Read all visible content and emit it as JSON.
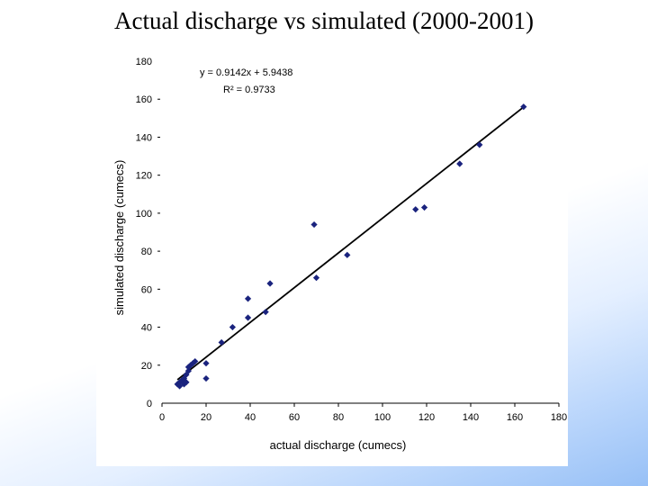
{
  "slide": {
    "title": "Actual discharge vs simulated (2000-2001)"
  },
  "chart_data": {
    "type": "scatter",
    "xlabel": "actual discharge (cumecs)",
    "ylabel": "simulated discharge (cumecs)",
    "xlim": [
      0,
      180
    ],
    "ylim": [
      0,
      180
    ],
    "xticks": [
      0,
      20,
      40,
      60,
      80,
      100,
      120,
      140,
      160,
      180
    ],
    "yticks": [
      0,
      20,
      40,
      60,
      80,
      100,
      120,
      140,
      160,
      180
    ],
    "grid": false,
    "legend": "none",
    "marker_color": "#1a237e",
    "trendline": {
      "type": "linear",
      "slope": 0.9142,
      "intercept": 5.9438,
      "equation": "y = 0.9142x + 5.9438",
      "r_squared": "R² = 0.9733"
    },
    "points": [
      {
        "x": 7,
        "y": 10
      },
      {
        "x": 8,
        "y": 11
      },
      {
        "x": 8,
        "y": 9
      },
      {
        "x": 9,
        "y": 12
      },
      {
        "x": 10,
        "y": 13
      },
      {
        "x": 10,
        "y": 10
      },
      {
        "x": 11,
        "y": 15
      },
      {
        "x": 11,
        "y": 11
      },
      {
        "x": 12,
        "y": 17
      },
      {
        "x": 12,
        "y": 19
      },
      {
        "x": 13,
        "y": 20
      },
      {
        "x": 14,
        "y": 21
      },
      {
        "x": 15,
        "y": 22
      },
      {
        "x": 20,
        "y": 21
      },
      {
        "x": 20,
        "y": 13
      },
      {
        "x": 27,
        "y": 32
      },
      {
        "x": 32,
        "y": 40
      },
      {
        "x": 39,
        "y": 55
      },
      {
        "x": 39,
        "y": 45
      },
      {
        "x": 47,
        "y": 48
      },
      {
        "x": 49,
        "y": 63
      },
      {
        "x": 69,
        "y": 94
      },
      {
        "x": 70,
        "y": 66
      },
      {
        "x": 84,
        "y": 78
      },
      {
        "x": 115,
        "y": 102
      },
      {
        "x": 119,
        "y": 103
      },
      {
        "x": 135,
        "y": 126
      },
      {
        "x": 144,
        "y": 136
      },
      {
        "x": 164,
        "y": 156
      }
    ]
  }
}
